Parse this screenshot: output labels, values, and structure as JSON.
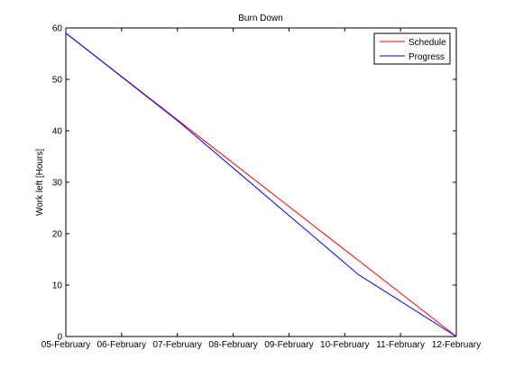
{
  "chart_data": {
    "type": "line",
    "title": "Burn Down",
    "xlabel": "",
    "ylabel": "Work left [Hours]",
    "x_ticks": [
      "05-February",
      "06-February",
      "07-February",
      "08-February",
      "09-February",
      "10-February",
      "11-February",
      "12-February"
    ],
    "xlim": [
      "05-February",
      "12-February"
    ],
    "y_ticks": [
      0,
      10,
      20,
      30,
      40,
      50,
      60
    ],
    "ylim": [
      0,
      60
    ],
    "grid": false,
    "legend_position": "top-right",
    "series": [
      {
        "name": "Schedule",
        "color": "#ff0000",
        "points": [
          {
            "x": "05-February",
            "y": 59
          },
          {
            "x": "12-February",
            "y": 0
          }
        ]
      },
      {
        "name": "Progress",
        "color": "#0000ff",
        "points": [
          {
            "x": "05-February",
            "y": 59
          },
          {
            "x": "07-February",
            "y": 42
          },
          {
            "x": "10-February 06:00",
            "y": 12
          },
          {
            "x": "12-February",
            "y": 0
          }
        ]
      }
    ]
  }
}
